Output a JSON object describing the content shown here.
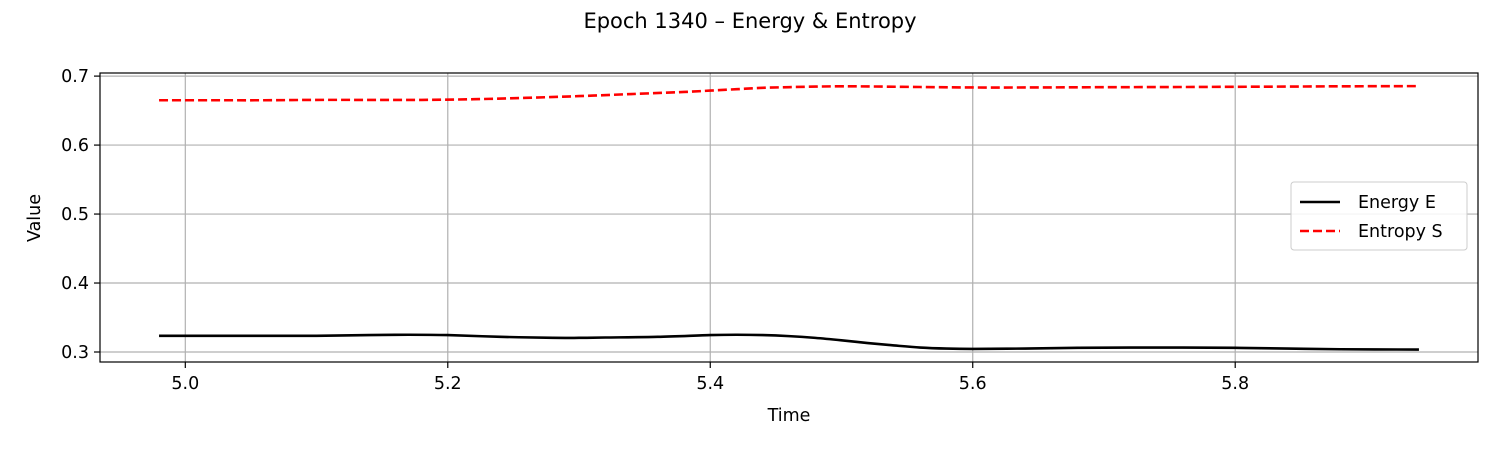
{
  "chart_data": {
    "type": "line",
    "title": "Epoch 1340 – Energy & Entropy",
    "xlabel": "Time",
    "ylabel": "Value",
    "xlim": [
      4.935,
      5.985
    ],
    "ylim": [
      0.2855,
      0.7045
    ],
    "xticks": [
      5.0,
      5.2,
      5.4,
      5.6,
      5.8
    ],
    "xtick_labels": [
      "5.0",
      "5.2",
      "5.4",
      "5.6",
      "5.8"
    ],
    "yticks": [
      0.3,
      0.4,
      0.5,
      0.6,
      0.7
    ],
    "ytick_labels": [
      "0.3",
      "0.4",
      "0.5",
      "0.6",
      "0.7"
    ],
    "grid": true,
    "legend_position": "center-right",
    "series": [
      {
        "name": "Energy E",
        "color": "#000000",
        "style": "solid",
        "x": [
          4.98,
          5.02,
          5.06,
          5.1,
          5.14,
          5.17,
          5.2,
          5.24,
          5.28,
          5.3,
          5.32,
          5.36,
          5.4,
          5.42,
          5.44,
          5.46,
          5.48,
          5.5,
          5.52,
          5.54,
          5.56,
          5.58,
          5.6,
          5.64,
          5.68,
          5.72,
          5.76,
          5.8,
          5.84,
          5.88,
          5.94
        ],
        "values": [
          0.3235,
          0.3235,
          0.3235,
          0.3235,
          0.3245,
          0.325,
          0.3245,
          0.322,
          0.3205,
          0.3205,
          0.321,
          0.322,
          0.3245,
          0.325,
          0.3245,
          0.323,
          0.3205,
          0.317,
          0.313,
          0.3095,
          0.3065,
          0.305,
          0.3045,
          0.305,
          0.306,
          0.3065,
          0.3065,
          0.306,
          0.305,
          0.304,
          0.3035
        ]
      },
      {
        "name": "Entropy S",
        "color": "#ff0000",
        "style": "dashed",
        "x": [
          4.98,
          5.02,
          5.06,
          5.1,
          5.14,
          5.18,
          5.22,
          5.26,
          5.3,
          5.34,
          5.38,
          5.4,
          5.42,
          5.44,
          5.46,
          5.48,
          5.5,
          5.52,
          5.56,
          5.6,
          5.64,
          5.68,
          5.72,
          5.76,
          5.8,
          5.84,
          5.88,
          5.94
        ],
        "values": [
          0.665,
          0.665,
          0.665,
          0.6655,
          0.6655,
          0.6655,
          0.6665,
          0.6685,
          0.671,
          0.674,
          0.677,
          0.679,
          0.681,
          0.683,
          0.684,
          0.6848,
          0.6852,
          0.685,
          0.6842,
          0.6835,
          0.6835,
          0.6838,
          0.684,
          0.6842,
          0.6845,
          0.6848,
          0.6852,
          0.6855
        ]
      }
    ]
  }
}
